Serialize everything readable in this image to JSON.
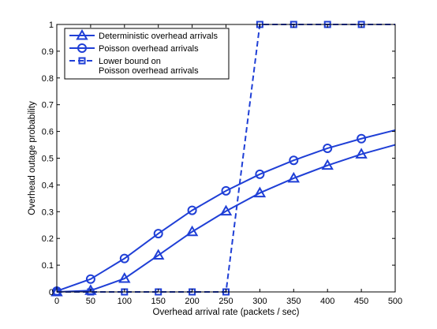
{
  "chart_data": {
    "type": "line",
    "xlabel": "Overhead arrival rate (packets / sec)",
    "ylabel": "Overhead outage probability",
    "xlim": [
      0,
      500
    ],
    "ylim": [
      0,
      1
    ],
    "x_ticks": [
      "0",
      "50",
      "100",
      "150",
      "200",
      "250",
      "300",
      "350",
      "400",
      "450",
      "500"
    ],
    "y_ticks": [
      "0",
      "0.1",
      "0.2",
      "0.3",
      "0.4",
      "0.5",
      "0.6",
      "0.7",
      "0.8",
      "0.9",
      "1"
    ],
    "grid": false,
    "legend_position": "top-left",
    "color": "#1f3fd6",
    "series": [
      {
        "name": "Deterministic overhead arrivals",
        "marker": "triangle",
        "line_style": "solid",
        "x": [
          0,
          50,
          100,
          150,
          200,
          250,
          300,
          350,
          400,
          450,
          500
        ],
        "y": [
          0,
          0.005,
          0.05,
          0.137,
          0.225,
          0.302,
          0.37,
          0.425,
          0.473,
          0.515,
          0.55
        ],
        "marker_x": [
          0,
          50,
          100,
          150,
          200,
          250,
          300,
          350,
          400,
          450
        ]
      },
      {
        "name": "Poisson overhead arrivals",
        "marker": "circle",
        "line_style": "solid",
        "x": [
          0,
          50,
          100,
          150,
          200,
          250,
          300,
          350,
          400,
          450,
          500
        ],
        "y": [
          0.003,
          0.048,
          0.125,
          0.218,
          0.305,
          0.378,
          0.44,
          0.492,
          0.537,
          0.573,
          0.605
        ],
        "marker_x": [
          0,
          50,
          100,
          150,
          200,
          250,
          300,
          350,
          400,
          450
        ]
      },
      {
        "name": "Lower bound on\nPoisson overhead arrivals",
        "marker": "square",
        "line_style": "dashed",
        "x": [
          0,
          50,
          100,
          150,
          200,
          250,
          300,
          350,
          400,
          450,
          500
        ],
        "y": [
          0,
          0,
          0,
          0,
          0,
          0,
          1,
          1,
          1,
          1,
          1
        ],
        "marker_x": [
          0,
          50,
          100,
          150,
          200,
          250,
          300,
          350,
          400,
          450
        ]
      }
    ]
  }
}
